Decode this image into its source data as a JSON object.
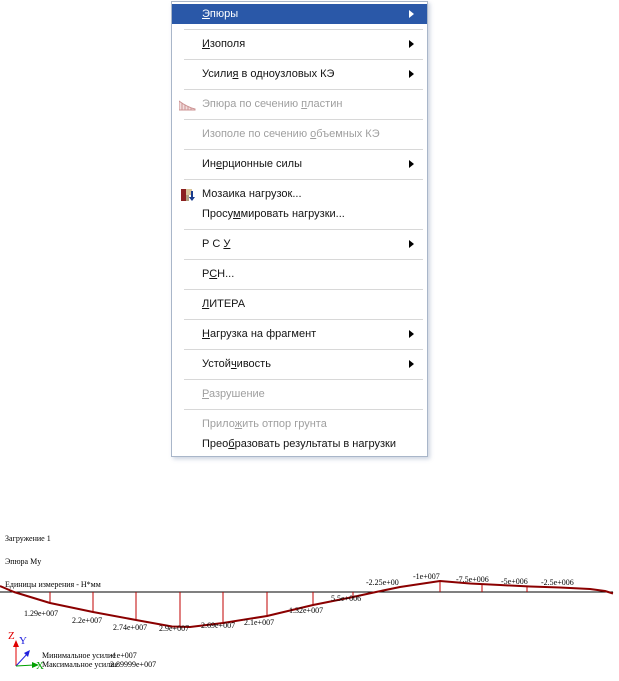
{
  "menu": {
    "items": [
      {
        "label": "Эпюры",
        "u": 0,
        "submenu": true,
        "enabled": true,
        "highlighted": true,
        "icon": null,
        "sep_after": true
      },
      {
        "label": "Изополя",
        "u": 0,
        "submenu": true,
        "enabled": true,
        "highlighted": false,
        "icon": null,
        "sep_after": true
      },
      {
        "label": "Усилия в одноузловых КЭ",
        "u": 5,
        "submenu": true,
        "enabled": true,
        "highlighted": false,
        "icon": null,
        "sep_after": true
      },
      {
        "label": "Эпюра по сечению пластин",
        "u": 17,
        "submenu": false,
        "enabled": false,
        "highlighted": false,
        "icon": "epure-icon",
        "sep_after": true
      },
      {
        "label": "Изополе по сечению объемных КЭ",
        "u": 19,
        "submenu": false,
        "enabled": false,
        "highlighted": false,
        "icon": null,
        "sep_after": true
      },
      {
        "label": "Инерционные силы",
        "u": 2,
        "submenu": true,
        "enabled": true,
        "highlighted": false,
        "icon": null,
        "sep_after": true
      },
      {
        "label": "Мозаика нагрузок...",
        "u": -1,
        "submenu": false,
        "enabled": true,
        "highlighted": false,
        "icon": "mosaic-loads-icon",
        "sep_after": false
      },
      {
        "label": "Просуммировать нагрузки...",
        "u": 5,
        "submenu": false,
        "enabled": true,
        "highlighted": false,
        "icon": null,
        "sep_after": true
      },
      {
        "label": "Р С У",
        "u": 4,
        "submenu": true,
        "enabled": true,
        "highlighted": false,
        "icon": null,
        "sep_after": true
      },
      {
        "label": "РСН...",
        "u": 1,
        "submenu": false,
        "enabled": true,
        "highlighted": false,
        "icon": null,
        "sep_after": true
      },
      {
        "label": "ЛИТЕРА",
        "u": 0,
        "submenu": false,
        "enabled": true,
        "highlighted": false,
        "icon": null,
        "sep_after": true
      },
      {
        "label": "Нагрузка на фрагмент",
        "u": 0,
        "submenu": true,
        "enabled": true,
        "highlighted": false,
        "icon": null,
        "sep_after": true
      },
      {
        "label": "Устойчивость",
        "u": 5,
        "submenu": true,
        "enabled": true,
        "highlighted": false,
        "icon": null,
        "sep_after": true
      },
      {
        "label": "Разрушение",
        "u": 0,
        "submenu": false,
        "enabled": false,
        "highlighted": false,
        "icon": null,
        "sep_after": true
      },
      {
        "label": "Приложить отпор грунта",
        "u": 5,
        "submenu": false,
        "enabled": false,
        "highlighted": false,
        "icon": null,
        "sep_after": false
      },
      {
        "label": "Преобразовать результаты в нагрузки",
        "u": 4,
        "submenu": false,
        "enabled": true,
        "highlighted": false,
        "icon": null,
        "sep_after": false
      }
    ]
  },
  "results_view": {
    "header_lines": [
      "Загружение 1",
      "Эпюра My",
      "Единицы измерения - Н*мм"
    ],
    "min_label": "Минимальное усилие",
    "min_value": "-1e+007",
    "max_label": "Максимальное усилие",
    "max_value": "2.89999e+007",
    "axes": {
      "z": "Z",
      "y": "Y",
      "x": "X"
    }
  },
  "chart_data": {
    "type": "line",
    "title": "Эпюра My",
    "load_case": "Загружение 1",
    "units": "Н*мм",
    "values_below": [
      "1.29e+007",
      "2.2e+007",
      "2.74e+007",
      "2.9e+007",
      "2.69e+007",
      "2.1e+007",
      "1.32e+007",
      "5.5e+006"
    ],
    "values_above": [
      "-2.25e+00",
      "-1e+007",
      "-7.5e+006",
      "-5e+006",
      "-2.5e+006"
    ],
    "min_force": "-1e+007",
    "max_force": "2.89999e+007"
  },
  "colors": {
    "highlight": "#2a58a8",
    "curve": "#8b0000",
    "tick": "#c00000",
    "beam": "#000000",
    "axis_z": "#e00000",
    "axis_y": "#2222dd",
    "axis_x": "#00a000",
    "disabled_text": "#9f9f9f"
  }
}
